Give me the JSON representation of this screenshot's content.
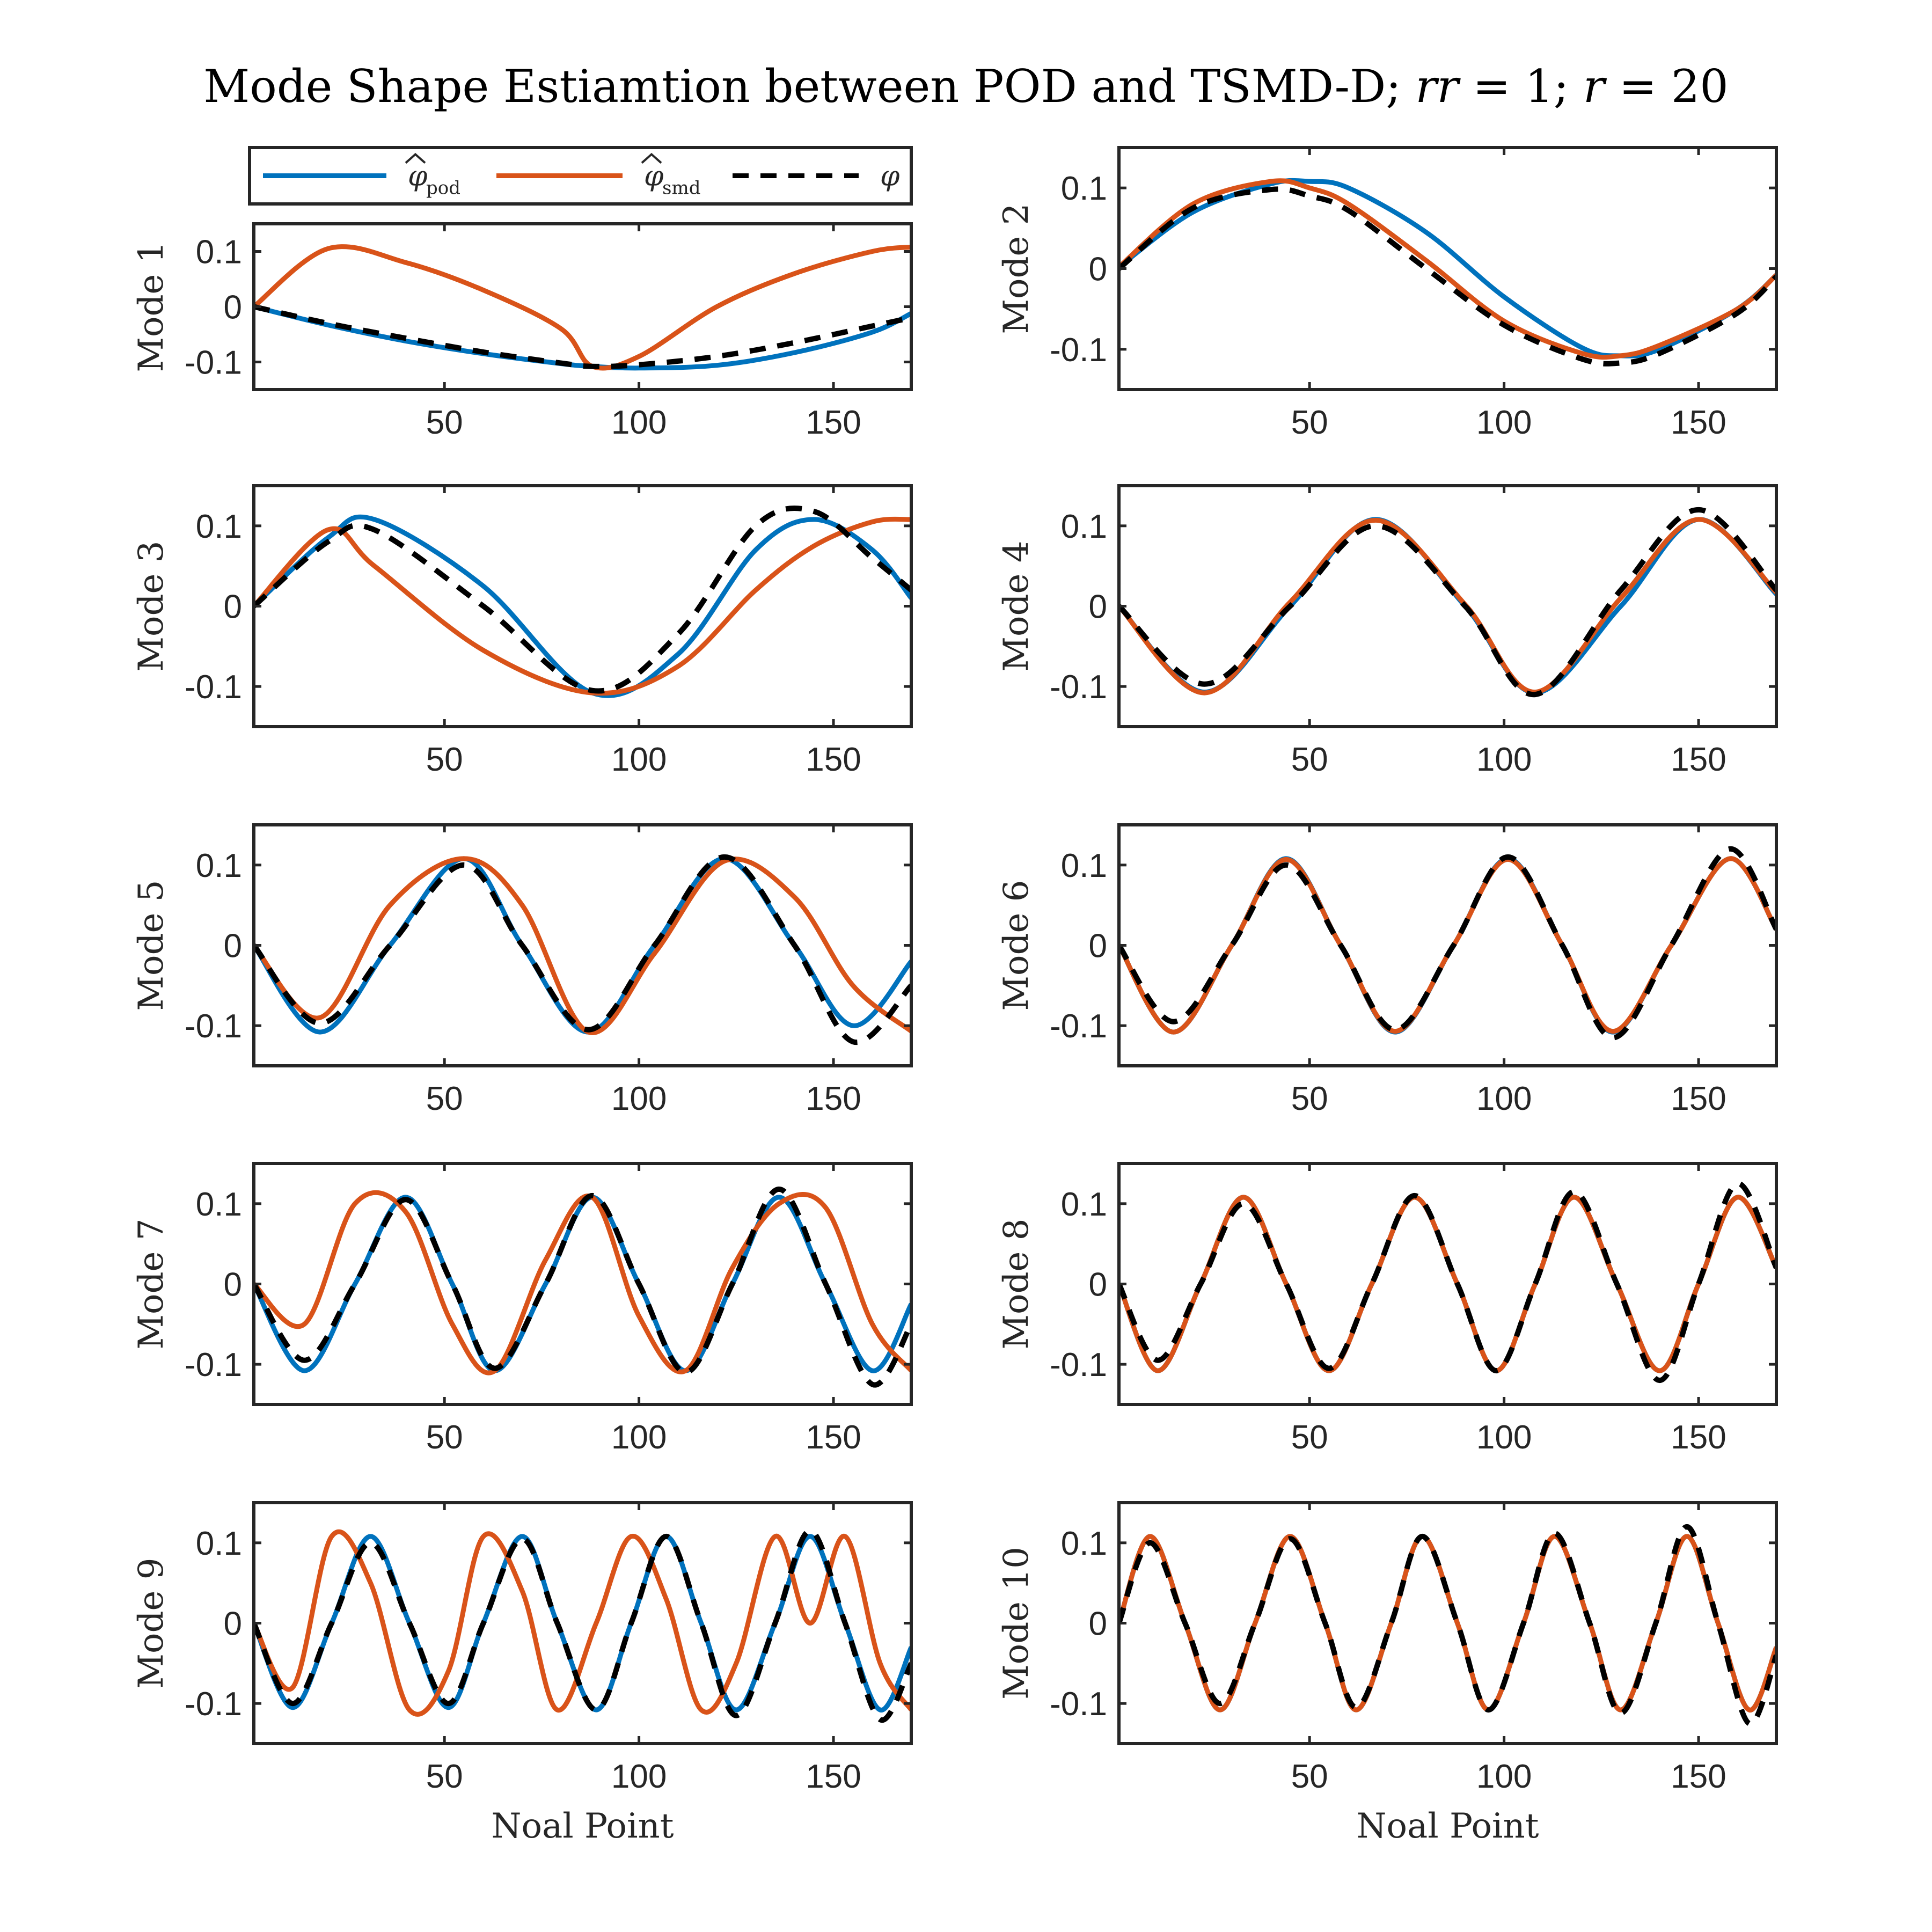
{
  "chart_data": {
    "type": "line",
    "title": "Mode Shape Estiamtion between POD and TSMD-D; rr = 1; r = 20",
    "title_parts": {
      "prefix": "Mode Shape Estiamtion between POD and TSMD-D; ",
      "rr_var": "rr",
      "rr_eq": " = 1; ",
      "r_var": "r",
      "r_eq": " = 20"
    },
    "xlabel": "Noal Point",
    "xlim": [
      1,
      170
    ],
    "ylim": [
      -0.15,
      0.15
    ],
    "xticks": [
      50,
      100,
      150
    ],
    "yticks": [
      0.1,
      0,
      -0.1
    ],
    "ytick_labels": [
      "0.1",
      "0",
      "-0.1"
    ],
    "legend": {
      "placement": "above top-left panel",
      "entries": [
        {
          "symbol": "φ",
          "subscript": "pod",
          "hat": true,
          "color": "#0072BD",
          "style": "solid"
        },
        {
          "symbol": "φ",
          "subscript": "smd",
          "hat": true,
          "color": "#D95319",
          "style": "solid"
        },
        {
          "symbol": "φ",
          "subscript": "",
          "hat": false,
          "color": "#000000",
          "style": "dashed"
        }
      ]
    },
    "colors": {
      "pod": "#0072BD",
      "smd": "#D95319",
      "true": "#000000"
    },
    "panels": [
      {
        "ylabel": "Mode 1",
        "x": [
          1,
          20,
          40,
          60,
          80,
          88,
          100,
          120,
          140,
          160,
          170
        ],
        "series": [
          {
            "name": "pod",
            "y": [
              0.0,
              -0.033,
              -0.062,
              -0.085,
              -0.103,
              -0.108,
              -0.111,
              -0.106,
              -0.083,
              -0.046,
              -0.012
            ]
          },
          {
            "name": "smd",
            "y": [
              0.0,
              0.105,
              0.08,
              0.03,
              -0.04,
              -0.108,
              -0.09,
              0.0,
              0.06,
              0.1,
              0.108
            ]
          },
          {
            "name": "true",
            "y": [
              0.0,
              -0.03,
              -0.057,
              -0.082,
              -0.102,
              -0.108,
              -0.105,
              -0.09,
              -0.065,
              -0.035,
              -0.02
            ]
          }
        ]
      },
      {
        "ylabel": "Mode 2",
        "x": [
          1,
          20,
          40,
          50,
          60,
          80,
          100,
          120,
          130,
          140,
          160,
          170
        ],
        "series": [
          {
            "name": "pod",
            "y": [
              0.002,
              0.07,
              0.105,
              0.108,
              0.1,
              0.045,
              -0.035,
              -0.098,
              -0.108,
              -0.1,
              -0.05,
              -0.008
            ]
          },
          {
            "name": "smd",
            "y": [
              0.002,
              0.08,
              0.108,
              0.1,
              0.08,
              0.01,
              -0.065,
              -0.105,
              -0.108,
              -0.095,
              -0.05,
              -0.008
            ]
          },
          {
            "name": "true",
            "y": [
              0.0,
              0.075,
              0.098,
              0.09,
              0.072,
              0.0,
              -0.07,
              -0.112,
              -0.117,
              -0.105,
              -0.055,
              -0.01
            ]
          }
        ]
      },
      {
        "ylabel": "Mode 3",
        "x": [
          1,
          20,
          32,
          60,
          88,
          110,
          130,
          145,
          160,
          170
        ],
        "series": [
          {
            "name": "pod",
            "y": [
              0.0,
              0.085,
              0.108,
              0.025,
              -0.108,
              -0.06,
              0.07,
              0.108,
              0.07,
              0.01
            ]
          },
          {
            "name": "smd",
            "y": [
              0.0,
              0.095,
              0.05,
              -0.055,
              -0.108,
              -0.075,
              0.02,
              0.075,
              0.105,
              0.108
            ]
          },
          {
            "name": "true",
            "y": [
              0.0,
              0.08,
              0.095,
              0.0,
              -0.105,
              -0.035,
              0.1,
              0.118,
              0.06,
              0.02
            ]
          }
        ]
      },
      {
        "ylabel": "Mode 4",
        "x": [
          1,
          23,
          45,
          67,
          90,
          108,
          130,
          150,
          170
        ],
        "series": [
          {
            "name": "pod",
            "y": [
              0.0,
              -0.107,
              0.0,
              0.108,
              0.0,
              -0.108,
              0.0,
              0.108,
              0.015
            ]
          },
          {
            "name": "smd",
            "y": [
              0.0,
              -0.108,
              0.005,
              0.107,
              0.002,
              -0.107,
              0.01,
              0.108,
              0.017
            ]
          },
          {
            "name": "true",
            "y": [
              0.0,
              -0.097,
              0.0,
              0.1,
              0.0,
              -0.11,
              0.02,
              0.12,
              0.02
            ]
          }
        ]
      },
      {
        "ylabel": "Mode 5",
        "x": [
          1,
          18,
          36,
          55,
          70,
          87,
          104,
          122,
          140,
          155,
          170
        ],
        "series": [
          {
            "name": "pod",
            "y": [
              0.0,
              -0.108,
              0.0,
              0.108,
              0.0,
              -0.108,
              0.0,
              0.108,
              0.0,
              -0.1,
              -0.02
            ]
          },
          {
            "name": "smd",
            "y": [
              0.0,
              -0.09,
              0.05,
              0.108,
              0.05,
              -0.108,
              -0.01,
              0.105,
              0.06,
              -0.05,
              -0.107
            ]
          },
          {
            "name": "true",
            "y": [
              0.0,
              -0.097,
              0.0,
              0.1,
              0.0,
              -0.105,
              0.0,
              0.11,
              0.0,
              -0.12,
              -0.05
            ]
          }
        ]
      },
      {
        "ylabel": "Mode 6",
        "x": [
          1,
          15,
          30,
          44,
          58,
          72,
          87,
          101,
          115,
          128,
          143,
          158,
          170
        ],
        "series": [
          {
            "name": "pod",
            "y": [
              0.0,
              -0.108,
              0.0,
              0.108,
              0.0,
              -0.108,
              0.0,
              0.108,
              0.0,
              -0.108,
              0.0,
              0.108,
              0.02
            ]
          },
          {
            "name": "smd",
            "y": [
              0.0,
              -0.108,
              0.0,
              0.107,
              0.0,
              -0.107,
              0.0,
              0.107,
              0.0,
              -0.107,
              0.0,
              0.108,
              0.02
            ]
          },
          {
            "name": "true",
            "y": [
              0.0,
              -0.095,
              0.0,
              0.1,
              0.0,
              -0.105,
              0.0,
              0.11,
              0.0,
              -0.115,
              0.0,
              0.12,
              0.02
            ]
          }
        ]
      },
      {
        "ylabel": "Mode 7",
        "x": [
          1,
          14,
          27,
          40,
          52,
          63,
          76,
          88,
          100,
          112,
          124,
          136,
          148,
          160,
          170
        ],
        "series": [
          {
            "name": "pod",
            "y": [
              0.0,
              -0.108,
              0.0,
              0.108,
              0.0,
              -0.108,
              0.0,
              0.108,
              0.0,
              -0.108,
              0.0,
              0.108,
              0.0,
              -0.108,
              -0.025
            ]
          },
          {
            "name": "smd",
            "y": [
              0.0,
              -0.05,
              0.1,
              0.09,
              -0.05,
              -0.108,
              0.03,
              0.108,
              -0.04,
              -0.108,
              0.02,
              0.1,
              0.095,
              -0.05,
              -0.108
            ]
          },
          {
            "name": "true",
            "y": [
              0.0,
              -0.095,
              0.0,
              0.105,
              0.0,
              -0.105,
              0.0,
              0.11,
              0.0,
              -0.11,
              0.0,
              0.118,
              0.0,
              -0.125,
              -0.05
            ]
          }
        ]
      },
      {
        "ylabel": "Mode 8",
        "x": [
          1,
          11,
          22,
          33,
          44,
          55,
          66,
          77,
          88,
          98,
          108,
          118,
          129,
          140,
          150,
          160,
          170
        ],
        "series": [
          {
            "name": "pod",
            "y": [
              0.0,
              -0.108,
              0.0,
              0.108,
              0.0,
              -0.108,
              0.0,
              0.108,
              0.0,
              -0.108,
              0.0,
              0.108,
              0.0,
              -0.108,
              0.0,
              0.108,
              0.02
            ]
          },
          {
            "name": "smd",
            "y": [
              0.0,
              -0.108,
              0.0,
              0.108,
              0.0,
              -0.108,
              0.0,
              0.108,
              0.0,
              -0.108,
              0.0,
              0.108,
              0.0,
              -0.108,
              0.0,
              0.108,
              0.02
            ]
          },
          {
            "name": "true",
            "y": [
              0.0,
              -0.095,
              0.0,
              0.1,
              0.0,
              -0.105,
              0.0,
              0.11,
              0.0,
              -0.108,
              0.0,
              0.115,
              0.0,
              -0.12,
              0.0,
              0.125,
              0.02
            ]
          }
        ]
      },
      {
        "ylabel": "Mode 9",
        "x": [
          1,
          11,
          21,
          31,
          41,
          51,
          60,
          70,
          79,
          89,
          98,
          107,
          116,
          125,
          135,
          144,
          153,
          162,
          170
        ],
        "series": [
          {
            "name": "pod",
            "y": [
              0.0,
              -0.105,
              0.0,
              0.108,
              0.0,
              -0.105,
              0.0,
              0.108,
              0.0,
              -0.108,
              0.0,
              0.108,
              0.0,
              -0.108,
              0.0,
              0.108,
              0.0,
              -0.108,
              -0.03
            ]
          },
          {
            "name": "smd",
            "y": [
              0.0,
              -0.08,
              0.108,
              0.05,
              -0.108,
              -0.06,
              0.108,
              0.04,
              -0.108,
              0.0,
              0.108,
              0.03,
              -0.108,
              -0.05,
              0.108,
              0.0,
              0.108,
              -0.05,
              -0.108
            ]
          },
          {
            "name": "true",
            "y": [
              0.0,
              -0.1,
              0.0,
              0.1,
              0.0,
              -0.1,
              0.0,
              0.105,
              0.0,
              -0.108,
              0.0,
              0.108,
              0.0,
              -0.115,
              0.0,
              0.115,
              0.0,
              -0.12,
              -0.05
            ]
          }
        ]
      },
      {
        "ylabel": "Mode 10",
        "x": [
          1,
          9,
          18,
          27,
          36,
          45,
          54,
          62,
          71,
          79,
          88,
          96,
          105,
          113,
          122,
          130,
          139,
          147,
          155,
          163,
          170
        ],
        "series": [
          {
            "name": "pod",
            "y": [
              0.0,
              0.108,
              0.0,
              -0.108,
              0.0,
              0.108,
              0.0,
              -0.108,
              0.0,
              0.108,
              0.0,
              -0.108,
              0.0,
              0.108,
              0.0,
              -0.108,
              0.0,
              0.108,
              0.0,
              -0.108,
              -0.03
            ]
          },
          {
            "name": "smd",
            "y": [
              0.0,
              0.108,
              0.0,
              -0.108,
              0.0,
              0.108,
              0.0,
              -0.108,
              0.0,
              0.108,
              0.0,
              -0.108,
              0.0,
              0.108,
              0.0,
              -0.108,
              0.0,
              0.108,
              0.0,
              -0.108,
              -0.03
            ]
          },
          {
            "name": "true",
            "y": [
              0.0,
              0.1,
              0.0,
              -0.1,
              0.0,
              0.105,
              0.0,
              -0.105,
              0.0,
              0.108,
              0.0,
              -0.108,
              0.0,
              0.112,
              0.0,
              -0.112,
              0.0,
              0.12,
              0.0,
              -0.125,
              -0.04
            ]
          }
        ]
      }
    ]
  }
}
